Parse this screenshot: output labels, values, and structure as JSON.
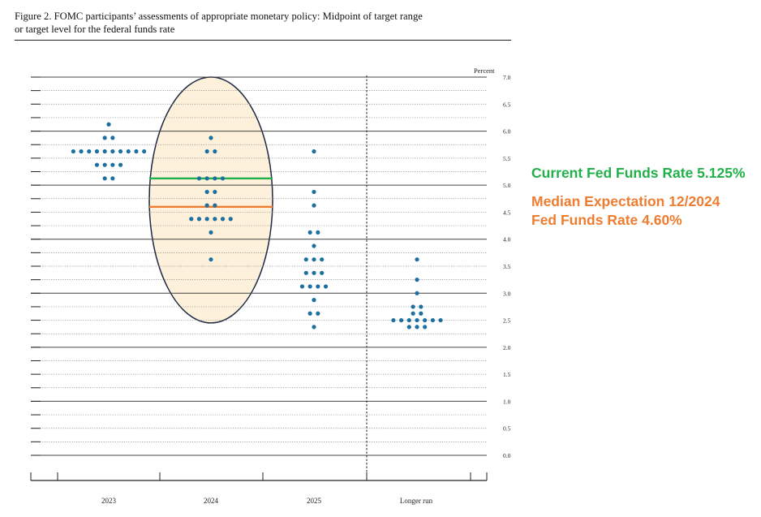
{
  "caption": {
    "line1": "Figure 2.  FOMC participants’ assessments of appropriate monetary policy:  Midpoint of target range",
    "line2": "or target level for the federal funds rate"
  },
  "annotations": {
    "current_rate": "Current Fed Funds Rate 5.125%",
    "median_line1": "Median Expectation 12/2024",
    "median_line2": "Fed Funds Rate 4.60%"
  },
  "colors": {
    "dot": "#1d6fa0",
    "current_line": "#22b04a",
    "median_line": "#ed7d31",
    "ellipse_fill": "#fdf1dc",
    "ellipse_stroke": "#1e2a44"
  },
  "chart_data": {
    "type": "scatter",
    "ylabel": "Percent",
    "ylim": [
      0,
      7
    ],
    "yticks": [
      "0.0",
      "0.5",
      "1.0",
      "1.5",
      "2.0",
      "2.5",
      "3.0",
      "3.5",
      "4.0",
      "4.5",
      "5.0",
      "5.5",
      "6.0",
      "6.5",
      "7.0"
    ],
    "categories": [
      "2023",
      "2024",
      "2025",
      "Longer run"
    ],
    "points": [
      {
        "category": "2023",
        "rows": [
          [
            6.125,
            1
          ],
          [
            5.875,
            2
          ],
          [
            5.625,
            10
          ],
          [
            5.375,
            4
          ],
          [
            5.125,
            2
          ]
        ]
      },
      {
        "category": "2024",
        "rows": [
          [
            5.875,
            1
          ],
          [
            5.625,
            2
          ],
          [
            5.125,
            4
          ],
          [
            4.875,
            2
          ],
          [
            4.625,
            2
          ],
          [
            4.375,
            6
          ],
          [
            4.125,
            1
          ],
          [
            3.625,
            1
          ]
        ]
      },
      {
        "category": "2025",
        "rows": [
          [
            5.625,
            1
          ],
          [
            4.875,
            1
          ],
          [
            4.625,
            1
          ],
          [
            4.125,
            2
          ],
          [
            3.875,
            1
          ],
          [
            3.625,
            3
          ],
          [
            3.375,
            3
          ],
          [
            3.125,
            4
          ],
          [
            2.875,
            1
          ],
          [
            2.625,
            2
          ],
          [
            2.375,
            1
          ]
        ]
      },
      {
        "category": "Longer run",
        "rows": [
          [
            3.625,
            1
          ],
          [
            3.25,
            1
          ],
          [
            3.0,
            1
          ],
          [
            2.75,
            2
          ],
          [
            2.625,
            2
          ],
          [
            2.5,
            7
          ],
          [
            2.375,
            3
          ]
        ]
      }
    ],
    "reference_lines": [
      {
        "value": 5.125,
        "color": "current"
      },
      {
        "value": 4.6,
        "color": "median"
      }
    ],
    "highlight_ellipse": {
      "category": "2024",
      "ymin": 2.45,
      "ymax": 7.0
    }
  }
}
